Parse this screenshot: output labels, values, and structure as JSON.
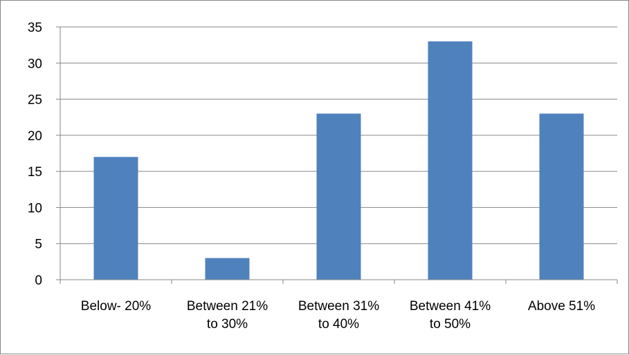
{
  "chart_data": {
    "type": "bar",
    "categories": [
      [
        "Below- 20%"
      ],
      [
        "Between 21%",
        "to  30%"
      ],
      [
        "Between 31%",
        "to 40%"
      ],
      [
        "Between 41%",
        "to 50%"
      ],
      [
        "Above 51%"
      ]
    ],
    "values": [
      17,
      3,
      23,
      33,
      23
    ],
    "title": "",
    "xlabel": "",
    "ylabel": "",
    "ylim": [
      0,
      35
    ],
    "yticks": [
      0,
      5,
      10,
      15,
      20,
      25,
      30,
      35
    ],
    "grid": true,
    "legend": "none",
    "bar_color": "#4F81BD",
    "grid_color": "#868686"
  }
}
